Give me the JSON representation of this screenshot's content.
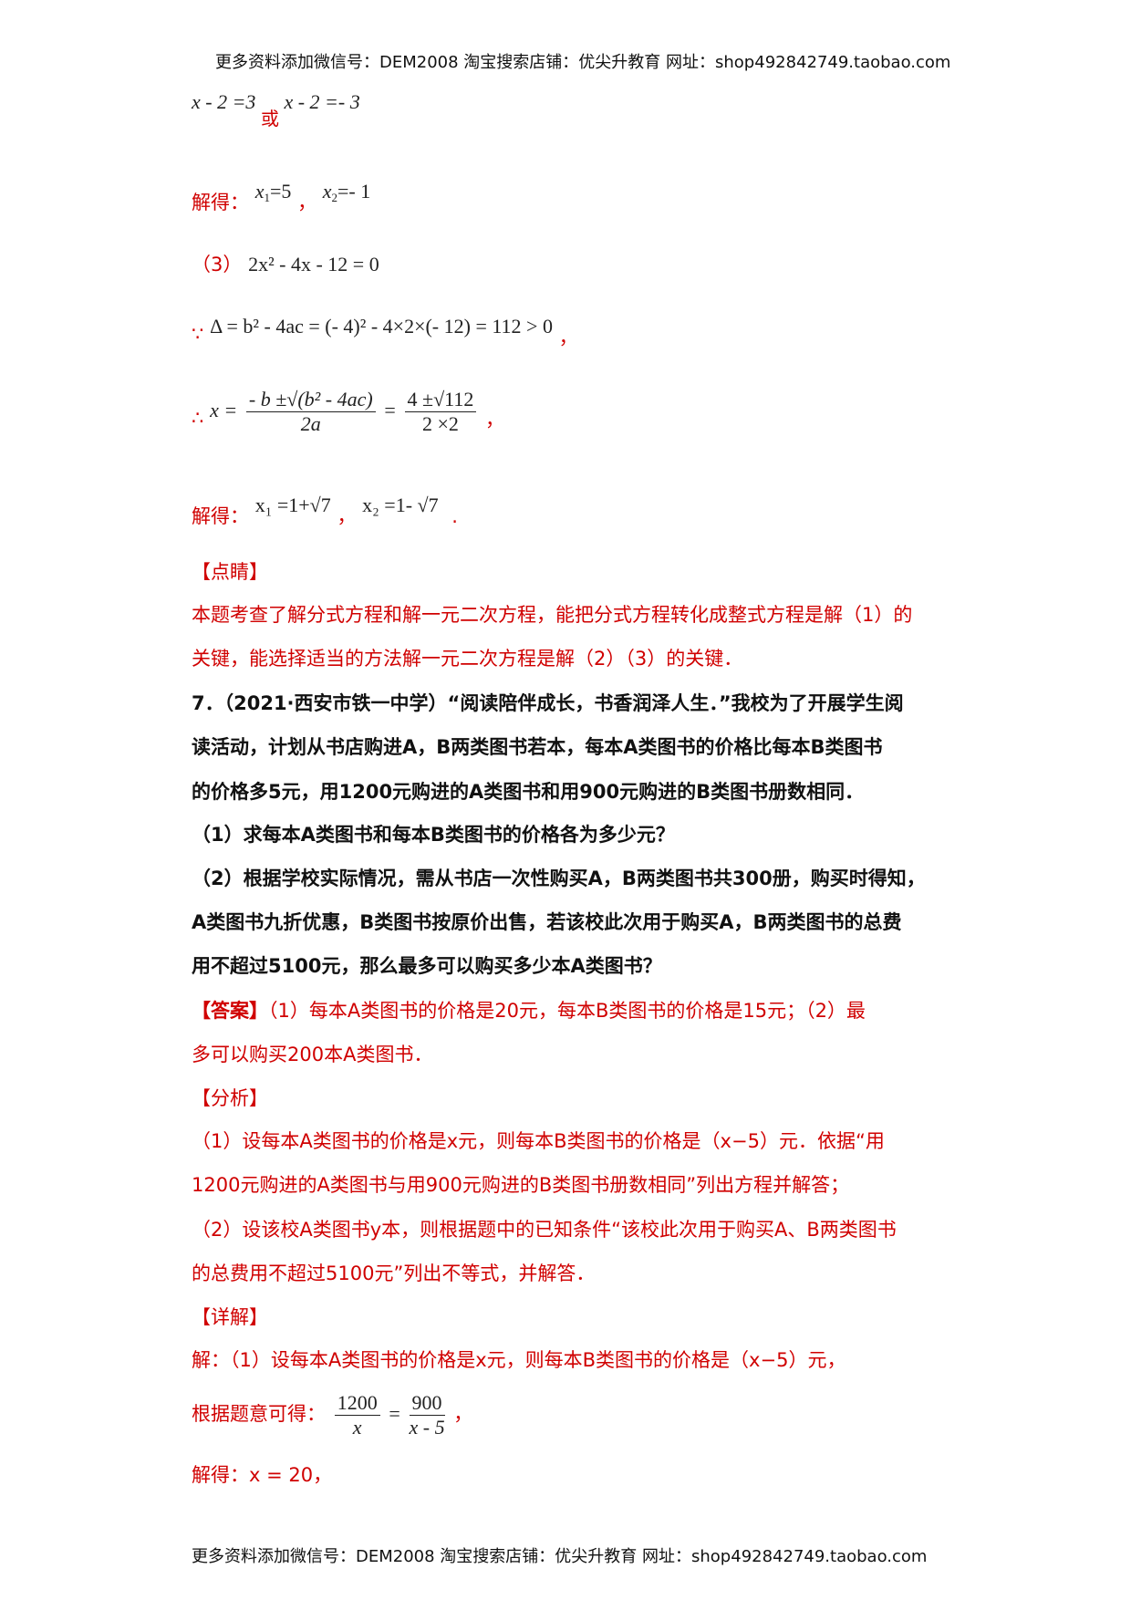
{
  "header": "更多资料添加微信号：DEM2008  淘宝搜索店铺：优尖升教育 网址：shop492842749.taobao.com",
  "footer": "更多资料添加微信号：DEM2008  淘宝搜索店铺：优尖升教育 网址：shop492842749.taobao.com",
  "math1": {
    "left": "x - 2 =3",
    "or": "或",
    "right": "x - 2 =- 3"
  },
  "sol1": {
    "label": "解得：",
    "x1": "x",
    "x1sub": "1",
    "x1val": "=5",
    "comma": "，",
    "x2": "x",
    "x2sub": "2",
    "x2val": "=- 1"
  },
  "part3": {
    "label": "（3）",
    "eq": "2x² - 4x - 12 = 0"
  },
  "delta": {
    "therefore": "∵",
    "eq": "Δ = b² - 4ac = (- 4)² - 4×2×(- 12) = 112 > 0",
    "comma": "，"
  },
  "formula": {
    "therefore": "∴",
    "x": "x =",
    "num1": "- b ±√(b² - 4ac)",
    "den1": "2a",
    "eq": "=",
    "num2": "4 ±√112",
    "den2": "2 ×2",
    "comma": "，"
  },
  "sol3": {
    "label": "解得：",
    "x1": "x₁ =1+√7",
    "comma": "，",
    "x2": "x₂ =1- √7",
    "period": "."
  },
  "dianjing": {
    "title": "【点睛】",
    "lines": [
      "本题考查了解分式方程和解一元二次方程，能把分式方程转化成整式方程是解（1）的",
      "关键，能选择适当的方法解一元二次方程是解（2）（3）的关键．"
    ]
  },
  "question": {
    "lines": [
      "7．（2021·西安市铁一中学）“阅读陪伴成长，书香润泽人生．”我校为了开展学生阅",
      "读活动，计划从书店购进A，B两类图书若本，每本A类图书的价格比每本B类图书",
      "的价格多5元，用1200元购进的A类图书和用900元购进的B类图书册数相同．",
      "（1）求每本A类图书和每本B类图书的价格各为多少元？",
      "（2）根据学校实际情况，需从书店一次性购买A，B两类图书共300册，购买时得知，",
      "A类图书九折优惠，B类图书按原价出售，若该校此次用于购买A，B两类图书的总费",
      "用不超过5100元，那么最多可以购买多少本A类图书？"
    ]
  },
  "answer": {
    "title": "【答案】",
    "lines": [
      "（1）每本A类图书的价格是20元，每本B类图书的价格是15元；（2）最",
      "多可以购买200本A类图书．"
    ]
  },
  "analysis": {
    "title": "【分析】",
    "lines": [
      "（1）设每本A类图书的价格是x元，则每本B类图书的价格是（x−5）元．依据“用",
      "1200元购进的A类图书与用900元购进的B类图书册数相同”列出方程并解答；",
      "（2）设该校A类图书y本，则根据题中的已知条件“该校此次用于购买A、B两类图书",
      "的总费用不超过5100元”列出不等式，并解答．"
    ]
  },
  "detail": {
    "title": "【详解】",
    "line1": "解：（1）设每本A类图书的价格是x元，则每本B类图书的价格是（x−5）元，",
    "eq_label": "根据题意可得：",
    "num1": "1200",
    "den1": "x",
    "eq": "=",
    "num2": "900",
    "den2": "x - 5",
    "comma": "，",
    "sol": "解得：x = 20，"
  },
  "colors": {
    "answer_red": "#d00000",
    "text": "#111111"
  }
}
